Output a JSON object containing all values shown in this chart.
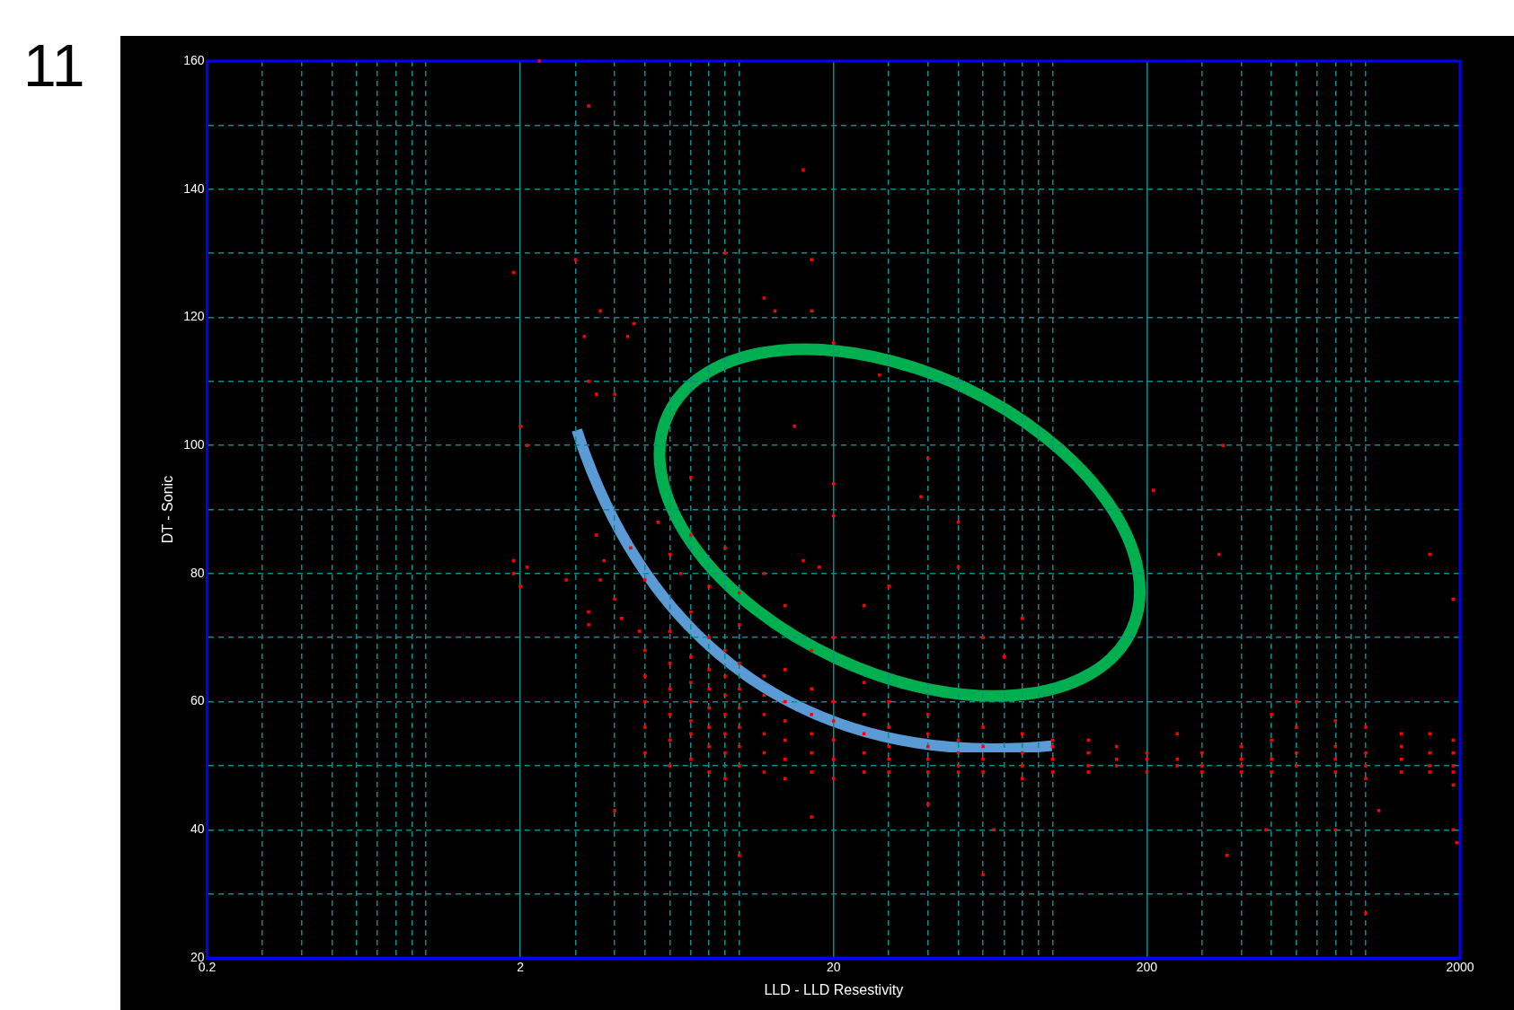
{
  "chart_data": {
    "type": "scatter",
    "xlabel": "LLD - LLD Resestivity",
    "ylabel": "DT - Sonic",
    "annotations": [
      "11"
    ],
    "log": "x",
    "grid": true,
    "marker": "square",
    "legend": false,
    "xlim": [
      0.2,
      2000
    ],
    "ylim": [
      20,
      160
    ],
    "xticks": [
      0.2,
      {
        "value": 0.3,
        "label": null
      },
      {
        "value": 0.4,
        "label": null
      },
      {
        "value": 0.5,
        "label": null
      },
      {
        "value": 0.6,
        "label": null
      },
      {
        "value": 0.7,
        "label": null
      },
      {
        "value": 0.8,
        "label": null
      },
      {
        "value": 0.9,
        "label": null
      },
      {
        "value": 1,
        "label": null
      },
      2,
      {
        "value": 3,
        "label": null
      },
      {
        "value": 4,
        "label": null
      },
      {
        "value": 5,
        "label": null
      },
      {
        "value": 6,
        "label": null
      },
      {
        "value": 7,
        "label": null
      },
      {
        "value": 8,
        "label": null
      },
      {
        "value": 9,
        "label": null
      },
      {
        "value": 10,
        "label": null
      },
      20,
      {
        "value": 30,
        "label": null
      },
      {
        "value": 40,
        "label": null
      },
      {
        "value": 50,
        "label": null
      },
      {
        "value": 60,
        "label": null
      },
      {
        "value": 70,
        "label": null
      },
      {
        "value": 80,
        "label": null
      },
      {
        "value": 90,
        "label": null
      },
      {
        "value": 100,
        "label": null
      },
      200,
      {
        "value": 300,
        "label": null
      },
      {
        "value": 400,
        "label": null
      },
      {
        "value": 500,
        "label": null
      },
      {
        "value": 600,
        "label": null
      },
      {
        "value": 700,
        "label": null
      },
      {
        "value": 800,
        "label": null
      },
      {
        "value": 900,
        "label": null
      },
      {
        "value": 1000,
        "label": null
      },
      2000
    ],
    "yticks": [
      20,
      {
        "value": 30,
        "label": null
      },
      40,
      {
        "value": 50,
        "label": null
      },
      60,
      {
        "value": 70,
        "label": null
      },
      80,
      {
        "value": 90,
        "label": null
      },
      100,
      {
        "value": 110,
        "label": null
      },
      120,
      {
        "value": 130,
        "label": null
      },
      140,
      {
        "value": 150,
        "label": null
      },
      160
    ],
    "series": [
      {
        "color": "#ff0000",
        "x": [
          2.3,
          3.3,
          1.9,
          3,
          3.2,
          3.6,
          4.6,
          4.4,
          13,
          12,
          16,
          17,
          17,
          20,
          9,
          2,
          2.1,
          3.5,
          4,
          3.3,
          7,
          15,
          20,
          20,
          28,
          40,
          38,
          50,
          210,
          350,
          340,
          1600,
          1900,
          1.9,
          1.9,
          2,
          2.1,
          2.8,
          3.3,
          3.3,
          3.5,
          3.7,
          4,
          4.2,
          4.8,
          3.6,
          4.5,
          5,
          5.5,
          6,
          6.5,
          7,
          8,
          9,
          10,
          12,
          14,
          16,
          18,
          25,
          30,
          50,
          60,
          70,
          80,
          4,
          10,
          17,
          40,
          60,
          65,
          360,
          480,
          1000,
          1100,
          1900,
          1950,
          800,
          5,
          5,
          5,
          5,
          5,
          6,
          6,
          6,
          6,
          6,
          6,
          7,
          7,
          7,
          7,
          7,
          7,
          7,
          8,
          8,
          8,
          8,
          8,
          8,
          8,
          9,
          9,
          9,
          9,
          9,
          9,
          9,
          10,
          10,
          10,
          10,
          10,
          10,
          10,
          12,
          12,
          12,
          12,
          12,
          12,
          14,
          14,
          14,
          14,
          14,
          14,
          17,
          17,
          17,
          17,
          17,
          17,
          20,
          20,
          20,
          20,
          20,
          20,
          25,
          25,
          25,
          25,
          25,
          30,
          30,
          30,
          30,
          30,
          40,
          40,
          40,
          40,
          40,
          50,
          50,
          50,
          50,
          60,
          60,
          60,
          60,
          80,
          80,
          80,
          80,
          100,
          100,
          100,
          100,
          130,
          130,
          130,
          130,
          160,
          160,
          160,
          200,
          200,
          200,
          250,
          250,
          250,
          300,
          300,
          300,
          400,
          400,
          400,
          400,
          500,
          500,
          500,
          500,
          600,
          600,
          600,
          600,
          800,
          800,
          800,
          800,
          1000,
          1000,
          1000,
          1000,
          1300,
          1300,
          1300,
          1300,
          1600,
          1600,
          1600,
          1600,
          1900,
          1900,
          1900,
          1900,
          1900
        ],
        "values": [
          160,
          153,
          127,
          129,
          117,
          121,
          119,
          117,
          121,
          123,
          143,
          129,
          121,
          116,
          130,
          103,
          100,
          108,
          108,
          110,
          95,
          103,
          94,
          89,
          111,
          98,
          92,
          88,
          93,
          100,
          83,
          83,
          76,
          82,
          80,
          78,
          81,
          79,
          72,
          74,
          86,
          82,
          76,
          73,
          71,
          79,
          84,
          79,
          88,
          83,
          80,
          86,
          78,
          84,
          77,
          80,
          75,
          82,
          81,
          75,
          78,
          81,
          70,
          67,
          73,
          43,
          36,
          42,
          44,
          33,
          40,
          36,
          40,
          27,
          43,
          40,
          38,
          40,
          52,
          56,
          60,
          64,
          68,
          50,
          54,
          58,
          62,
          66,
          71,
          51,
          55,
          57,
          60,
          63,
          67,
          74,
          49,
          53,
          56,
          59,
          62,
          65,
          70,
          48,
          52,
          55,
          58,
          61,
          64,
          68,
          50,
          53,
          56,
          59,
          62,
          66,
          72,
          49,
          52,
          55,
          58,
          61,
          64,
          48,
          51,
          54,
          57,
          60,
          65,
          49,
          52,
          55,
          58,
          62,
          68,
          48,
          51,
          54,
          57,
          60,
          70,
          49,
          52,
          55,
          58,
          63,
          49,
          51,
          53,
          56,
          60,
          49,
          51,
          53,
          55,
          58,
          49,
          50,
          52,
          54,
          49,
          51,
          53,
          56,
          48,
          50,
          52,
          55,
          49,
          51,
          53,
          54,
          49,
          50,
          52,
          54,
          50,
          51,
          53,
          49,
          51,
          52,
          50,
          51,
          55,
          49,
          50,
          52,
          49,
          50,
          51,
          53,
          49,
          51,
          54,
          58,
          50,
          52,
          56,
          60,
          49,
          51,
          53,
          57,
          48,
          50,
          52,
          56,
          49,
          51,
          53,
          55,
          49,
          50,
          52,
          55,
          47,
          49,
          50,
          52,
          54
        ]
      }
    ]
  }
}
